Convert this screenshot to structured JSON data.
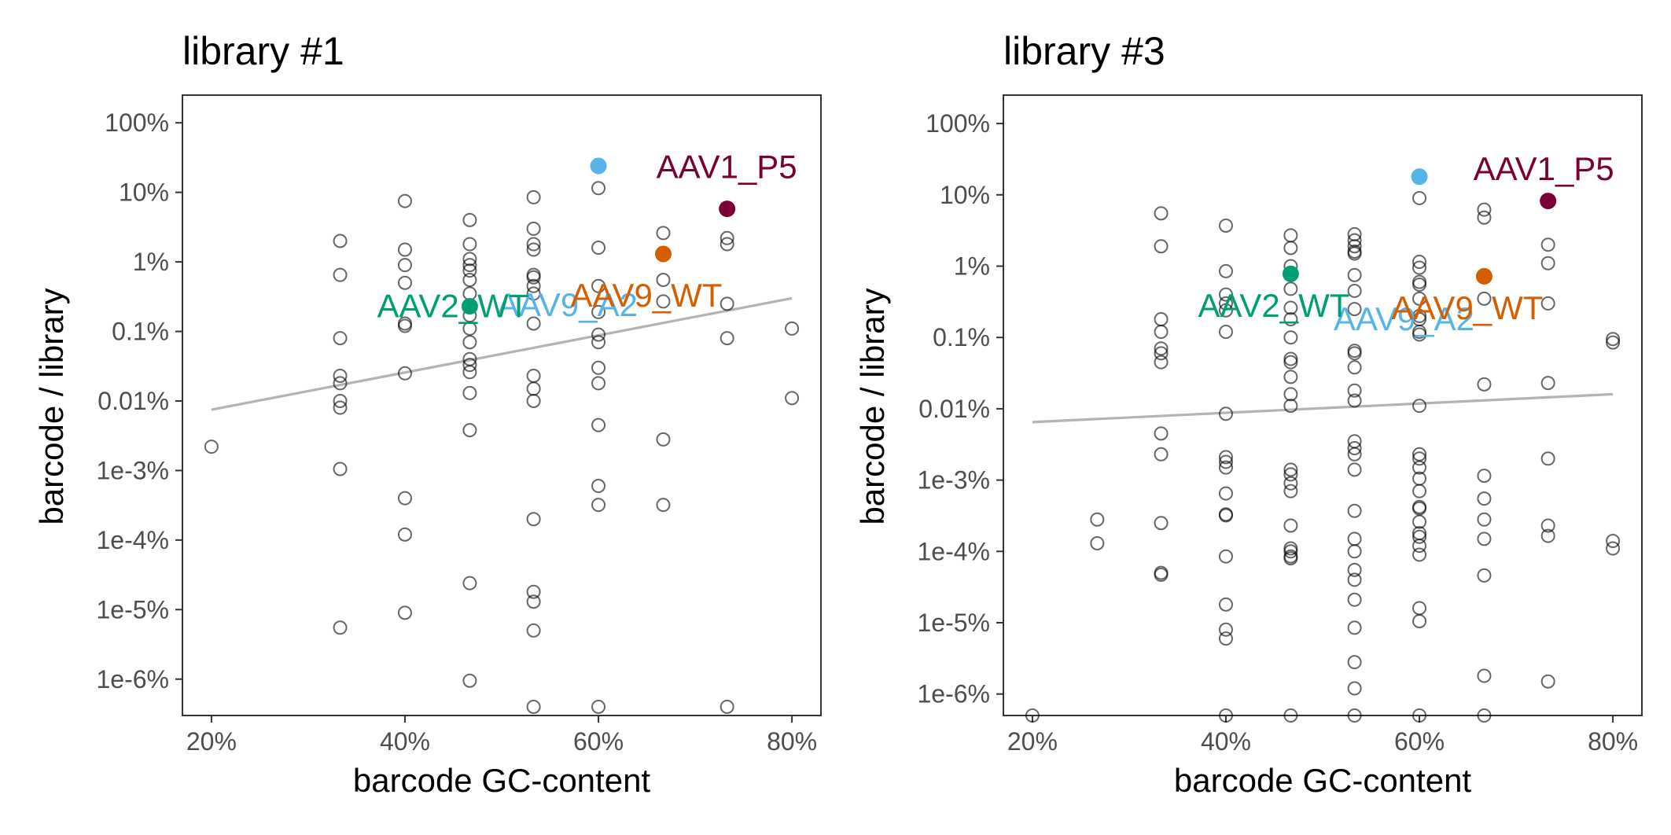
{
  "chart_data": [
    {
      "type": "scatter",
      "title": "library #1",
      "xlabel": "barcode GC-content",
      "ylabel": "barcode / library",
      "y_scale": "log10",
      "xlim": [
        0.17,
        0.83
      ],
      "ylim": [
        3e-09,
        2.5
      ],
      "x_ticks": [
        0.2,
        0.4,
        0.6,
        0.8
      ],
      "x_tick_labels": [
        "20%",
        "40%",
        "60%",
        "80%"
      ],
      "y_ticks": [
        1e-08,
        1e-07,
        1e-06,
        1e-05,
        0.0001,
        0.001,
        0.01,
        0.1,
        1
      ],
      "y_tick_labels": [
        "1e-6%",
        "1e-5%",
        "1e-4%",
        "1e-3%",
        "0.01%",
        "0.1%",
        "1%",
        "10%",
        "100%"
      ],
      "grid": false,
      "trend_line": {
        "x": [
          0.2,
          0.8
        ],
        "y": [
          7.5e-05,
          0.003
        ]
      },
      "points": [
        [
          0.2,
          2.2e-05
        ],
        [
          0.333,
          0.02
        ],
        [
          0.333,
          0.0065
        ],
        [
          0.333,
          0.0008
        ],
        [
          0.333,
          0.00023
        ],
        [
          0.333,
          0.00018
        ],
        [
          0.333,
          0.0001
        ],
        [
          0.333,
          8e-05
        ],
        [
          0.333,
          1.05e-05
        ],
        [
          0.333,
          5.5e-08
        ],
        [
          0.4,
          0.075
        ],
        [
          0.4,
          0.015
        ],
        [
          0.4,
          0.009
        ],
        [
          0.4,
          0.005
        ],
        [
          0.4,
          0.0013
        ],
        [
          0.4,
          0.0012
        ],
        [
          0.4,
          0.00025
        ],
        [
          0.4,
          4e-06
        ],
        [
          0.4,
          1.2e-06
        ],
        [
          0.4,
          9e-08
        ],
        [
          0.467,
          0.04
        ],
        [
          0.467,
          0.018
        ],
        [
          0.467,
          0.011
        ],
        [
          0.467,
          0.009
        ],
        [
          0.467,
          0.0075
        ],
        [
          0.467,
          0.0055
        ],
        [
          0.467,
          0.0035
        ],
        [
          0.467,
          0.0017
        ],
        [
          0.467,
          0.0011
        ],
        [
          0.467,
          0.0007
        ],
        [
          0.467,
          0.0004
        ],
        [
          0.467,
          0.00033
        ],
        [
          0.467,
          0.00026
        ],
        [
          0.467,
          0.00013
        ],
        [
          0.467,
          3.8e-05
        ],
        [
          0.467,
          2.4e-07
        ],
        [
          0.467,
          9.5e-09
        ],
        [
          0.533,
          0.085
        ],
        [
          0.533,
          0.03
        ],
        [
          0.533,
          0.018
        ],
        [
          0.533,
          0.015
        ],
        [
          0.533,
          0.0065
        ],
        [
          0.533,
          0.006
        ],
        [
          0.533,
          0.0045
        ],
        [
          0.533,
          0.0035
        ],
        [
          0.533,
          0.0013
        ],
        [
          0.533,
          0.00023
        ],
        [
          0.533,
          0.00015
        ],
        [
          0.533,
          0.0001
        ],
        [
          0.533,
          2e-06
        ],
        [
          0.533,
          1.8e-07
        ],
        [
          0.533,
          1.3e-07
        ],
        [
          0.533,
          5e-08
        ],
        [
          0.533,
          4e-09
        ],
        [
          0.6,
          0.115
        ],
        [
          0.6,
          0.016
        ],
        [
          0.6,
          0.0045
        ],
        [
          0.6,
          0.0019
        ],
        [
          0.6,
          0.0009
        ],
        [
          0.6,
          0.0007
        ],
        [
          0.6,
          0.0003
        ],
        [
          0.6,
          0.00018
        ],
        [
          0.6,
          4.5e-05
        ],
        [
          0.6,
          6e-06
        ],
        [
          0.6,
          3.2e-06
        ],
        [
          0.6,
          4e-09
        ],
        [
          0.667,
          0.026
        ],
        [
          0.667,
          0.0055
        ],
        [
          0.667,
          0.0027
        ],
        [
          0.667,
          2.8e-05
        ],
        [
          0.667,
          3.2e-06
        ],
        [
          0.733,
          0.022
        ],
        [
          0.733,
          0.018
        ],
        [
          0.733,
          0.0025
        ],
        [
          0.733,
          0.0008
        ],
        [
          0.733,
          4e-09
        ],
        [
          0.8,
          0.0011
        ],
        [
          0.8,
          0.00011
        ]
      ],
      "highlights": [
        {
          "name": "AAV9_A2",
          "x": 0.6,
          "y": 0.24,
          "color": "#56B4E9",
          "label_anchor": "end",
          "label_dx": 50,
          "label_dy": -2
        },
        {
          "name": "AAV1_P5",
          "x": 0.733,
          "y": 0.058,
          "color": "#7A0033",
          "label_anchor": "start",
          "label_dx": -90,
          "label_dy": 0.6
        },
        {
          "name": "AAV9_WT",
          "x": 0.667,
          "y": 0.013,
          "color": "#D55E00",
          "label_anchor": "end",
          "label_dx": 75,
          "label_dy": -0.6
        },
        {
          "name": "AAV2_WT",
          "x": 0.467,
          "y": 0.0023,
          "color": "#009E73",
          "label_anchor": "end",
          "label_dx": 75,
          "label_dy": 0
        }
      ]
    },
    {
      "type": "scatter",
      "title": "library #3",
      "xlabel": "barcode GC-content",
      "ylabel": "barcode / library",
      "y_scale": "log10",
      "xlim": [
        0.17,
        0.83
      ],
      "ylim": [
        5e-09,
        2.5
      ],
      "x_ticks": [
        0.2,
        0.4,
        0.6,
        0.8
      ],
      "x_tick_labels": [
        "20%",
        "40%",
        "60%",
        "80%"
      ],
      "y_ticks": [
        1e-08,
        1e-07,
        1e-06,
        1e-05,
        0.0001,
        0.001,
        0.01,
        0.1,
        1
      ],
      "y_tick_labels": [
        "1e-6%",
        "1e-5%",
        "1e-4%",
        "1e-3%",
        "0.01%",
        "0.1%",
        "1%",
        "10%",
        "100%"
      ],
      "grid": false,
      "trend_line": {
        "x": [
          0.2,
          0.8
        ],
        "y": [
          6.5e-05,
          0.00016
        ]
      },
      "points": [
        [
          0.2,
          5e-09
        ],
        [
          0.267,
          2.8e-06
        ],
        [
          0.267,
          1.3e-06
        ],
        [
          0.333,
          0.055
        ],
        [
          0.333,
          0.019
        ],
        [
          0.333,
          0.0018
        ],
        [
          0.333,
          0.0012
        ],
        [
          0.333,
          0.0007
        ],
        [
          0.333,
          0.0006
        ],
        [
          0.333,
          0.00045
        ],
        [
          0.333,
          4.5e-05
        ],
        [
          0.333,
          2.3e-05
        ],
        [
          0.333,
          2.5e-06
        ],
        [
          0.333,
          5e-07
        ],
        [
          0.333,
          4.7e-07
        ],
        [
          0.4,
          0.037
        ],
        [
          0.4,
          0.0085
        ],
        [
          0.4,
          0.004
        ],
        [
          0.4,
          0.003
        ],
        [
          0.4,
          0.0024
        ],
        [
          0.4,
          0.0012
        ],
        [
          0.4,
          8.5e-05
        ],
        [
          0.4,
          2.1e-05
        ],
        [
          0.4,
          1.8e-05
        ],
        [
          0.4,
          1.5e-05
        ],
        [
          0.4,
          6.5e-06
        ],
        [
          0.4,
          3.3e-06
        ],
        [
          0.4,
          3.2e-06
        ],
        [
          0.4,
          8.5e-07
        ],
        [
          0.4,
          1.8e-07
        ],
        [
          0.4,
          8e-08
        ],
        [
          0.4,
          6e-08
        ],
        [
          0.4,
          5e-09
        ],
        [
          0.467,
          0.027
        ],
        [
          0.467,
          0.018
        ],
        [
          0.467,
          0.01
        ],
        [
          0.467,
          0.0048
        ],
        [
          0.467,
          0.0026
        ],
        [
          0.467,
          0.0018
        ],
        [
          0.467,
          0.001
        ],
        [
          0.467,
          0.0005
        ],
        [
          0.467,
          0.00045
        ],
        [
          0.467,
          0.00028
        ],
        [
          0.467,
          0.00016
        ],
        [
          0.467,
          0.00011
        ],
        [
          0.467,
          1.4e-05
        ],
        [
          0.467,
          1.2e-05
        ],
        [
          0.467,
          9e-06
        ],
        [
          0.467,
          7e-06
        ],
        [
          0.467,
          2.3e-06
        ],
        [
          0.467,
          1.1e-06
        ],
        [
          0.467,
          1e-06
        ],
        [
          0.467,
          8.5e-07
        ],
        [
          0.467,
          8e-07
        ],
        [
          0.467,
          5e-09
        ],
        [
          0.533,
          0.028
        ],
        [
          0.533,
          0.023
        ],
        [
          0.533,
          0.019
        ],
        [
          0.533,
          0.016
        ],
        [
          0.533,
          0.015
        ],
        [
          0.533,
          0.0075
        ],
        [
          0.533,
          0.0045
        ],
        [
          0.533,
          0.0025
        ],
        [
          0.533,
          0.00065
        ],
        [
          0.533,
          0.0006
        ],
        [
          0.533,
          0.00038
        ],
        [
          0.533,
          0.00018
        ],
        [
          0.533,
          0.00013
        ],
        [
          0.533,
          3.5e-05
        ],
        [
          0.533,
          2.8e-05
        ],
        [
          0.533,
          2.3e-05
        ],
        [
          0.533,
          1.4e-05
        ],
        [
          0.533,
          3.7e-06
        ],
        [
          0.533,
          1.5e-06
        ],
        [
          0.533,
          1e-06
        ],
        [
          0.533,
          5.5e-07
        ],
        [
          0.533,
          4e-07
        ],
        [
          0.533,
          2.1e-07
        ],
        [
          0.533,
          8.5e-08
        ],
        [
          0.533,
          2.8e-08
        ],
        [
          0.533,
          1.2e-08
        ],
        [
          0.533,
          5e-09
        ],
        [
          0.6,
          0.09
        ],
        [
          0.6,
          0.0115
        ],
        [
          0.6,
          0.0095
        ],
        [
          0.6,
          0.006
        ],
        [
          0.6,
          0.0055
        ],
        [
          0.6,
          0.0035
        ],
        [
          0.6,
          0.002
        ],
        [
          0.6,
          0.0018
        ],
        [
          0.6,
          0.0012
        ],
        [
          0.6,
          0.0011
        ],
        [
          0.6,
          0.00011
        ],
        [
          0.6,
          2.3e-05
        ],
        [
          0.6,
          2e-05
        ],
        [
          0.6,
          1.5e-05
        ],
        [
          0.6,
          1.05e-05
        ],
        [
          0.6,
          7e-06
        ],
        [
          0.6,
          4.2e-06
        ],
        [
          0.6,
          4e-06
        ],
        [
          0.6,
          2.6e-06
        ],
        [
          0.6,
          1.8e-06
        ],
        [
          0.6,
          1.6e-06
        ],
        [
          0.6,
          1.2e-06
        ],
        [
          0.6,
          9e-07
        ],
        [
          0.6,
          1.6e-07
        ],
        [
          0.6,
          1.05e-07
        ],
        [
          0.6,
          5e-09
        ],
        [
          0.667,
          0.062
        ],
        [
          0.667,
          0.048
        ],
        [
          0.667,
          0.0075
        ],
        [
          0.667,
          0.0035
        ],
        [
          0.667,
          0.00022
        ],
        [
          0.667,
          1.15e-05
        ],
        [
          0.667,
          5.5e-06
        ],
        [
          0.667,
          2.8e-06
        ],
        [
          0.667,
          1.5e-06
        ],
        [
          0.667,
          4.6e-07
        ],
        [
          0.667,
          1.8e-08
        ],
        [
          0.667,
          5e-09
        ],
        [
          0.733,
          0.02
        ],
        [
          0.733,
          0.011
        ],
        [
          0.733,
          0.003
        ],
        [
          0.733,
          0.00023
        ],
        [
          0.733,
          2e-05
        ],
        [
          0.733,
          2.3e-06
        ],
        [
          0.733,
          1.65e-06
        ],
        [
          0.733,
          1.5e-08
        ],
        [
          0.8,
          0.00095
        ],
        [
          0.8,
          0.00085
        ],
        [
          0.8,
          1.4e-06
        ],
        [
          0.8,
          1.1e-06
        ]
      ],
      "highlights": [
        {
          "name": "AAV9_A2",
          "x": 0.6,
          "y": 0.18,
          "color": "#56B4E9",
          "label_anchor": "end",
          "label_dx": 70,
          "label_dy": -2
        },
        {
          "name": "AAV1_P5",
          "x": 0.733,
          "y": 0.082,
          "color": "#7A0033",
          "label_anchor": "start",
          "label_dx": -95,
          "label_dy": 0.45
        },
        {
          "name": "AAV9_WT",
          "x": 0.667,
          "y": 0.0072,
          "color": "#D55E00",
          "label_anchor": "end",
          "label_dx": 75,
          "label_dy": -0.45
        },
        {
          "name": "AAV2_WT",
          "x": 0.467,
          "y": 0.0078,
          "color": "#009E73",
          "label_anchor": "end",
          "label_dx": 75,
          "label_dy": -0.45
        }
      ]
    }
  ]
}
